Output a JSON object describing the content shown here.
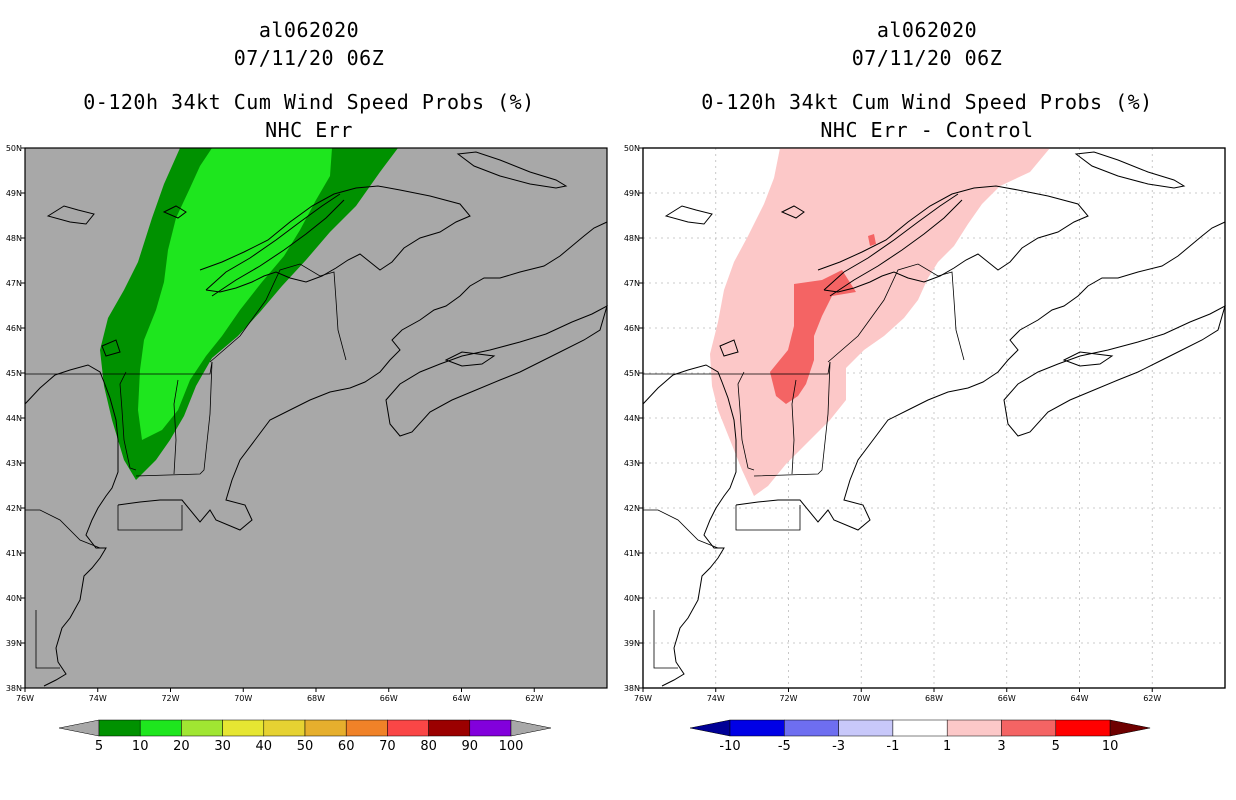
{
  "panels": [
    {
      "storm_id": "al062020",
      "datetime": "07/11/20 06Z",
      "product": "0-120h 34kt Cum Wind Speed Probs (%)",
      "subtitle": "NHC Err",
      "background_color": "#a8a8a8"
    },
    {
      "storm_id": "al062020",
      "datetime": "07/11/20 06Z",
      "product": "0-120h 34kt Cum Wind Speed Probs (%)",
      "subtitle": "NHC Err - Control",
      "background_color": "#ffffff"
    }
  ],
  "map": {
    "lon_range": [
      -76,
      -60
    ],
    "lat_range": [
      38,
      50
    ],
    "lon_labels": [
      "76W",
      "74W",
      "72W",
      "70W",
      "68W",
      "66W",
      "64W",
      "62W"
    ],
    "lat_labels": [
      "38N",
      "39N",
      "40N",
      "41N",
      "42N",
      "43N",
      "44N",
      "45N",
      "46N",
      "47N",
      "48N",
      "49N",
      "50N"
    ]
  },
  "colorbars": {
    "probability": {
      "labels": [
        "5",
        "10",
        "20",
        "30",
        "40",
        "50",
        "60",
        "70",
        "80",
        "90",
        "100"
      ],
      "colors": [
        "#009100",
        "#1ee61e",
        "#a0e632",
        "#e6e632",
        "#e6d232",
        "#e6af2d",
        "#f08228",
        "#fa4646",
        "#9b0000",
        "#8200dc"
      ],
      "end_color": "#a8a8a8"
    },
    "difference": {
      "labels": [
        "-10",
        "-5",
        "-3",
        "-1",
        "1",
        "3",
        "5",
        "10"
      ],
      "colors": [
        "#0000e6",
        "#6e6ef0",
        "#c8c8fa",
        "#ffffff",
        "#fcc8c8",
        "#f46464",
        "#ff0000"
      ],
      "low_color": "#000096",
      "high_color": "#6e0000"
    }
  },
  "legend": {
    "prob_10_20": "#1ee61e",
    "prob_5_10": "#009100",
    "diff_1_3": "#fcc8c8",
    "diff_3_5": "#f46464"
  }
}
